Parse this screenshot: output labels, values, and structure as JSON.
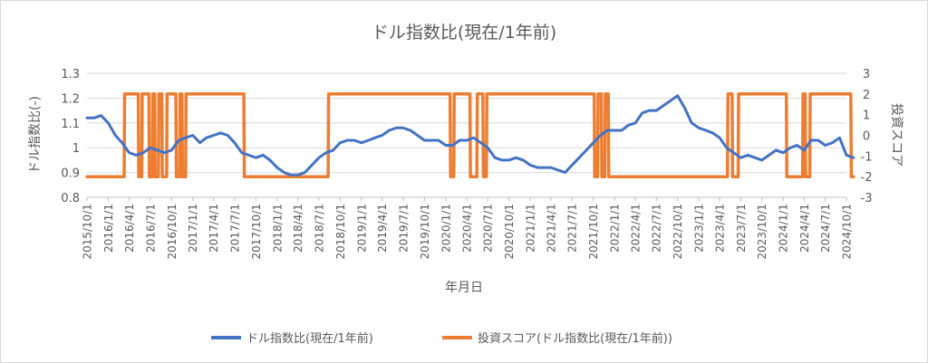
{
  "chart_data": {
    "type": "line",
    "title": "ドル指数比(現在/1年前)",
    "xlabel": "年月日",
    "ylabel": "ドル指数比(-)",
    "y2label": "投資スコア",
    "ylim": [
      0.8,
      1.3
    ],
    "y_ticks": [
      "1.3",
      "1.2",
      "1.1",
      "1",
      "0.9",
      "0.8"
    ],
    "y2lim": [
      -3,
      3
    ],
    "y2_ticks": [
      "3",
      "2",
      "1",
      "0",
      "-1",
      "-2",
      "-3"
    ],
    "grid": true,
    "legend": "bottom",
    "x_ticks": [
      "2015/10/1",
      "2016/1/1",
      "2016/4/1",
      "2016/7/1",
      "2016/10/1",
      "2017/1/1",
      "2017/4/1",
      "2017/7/1",
      "2017/10/1",
      "2018/1/1",
      "2018/4/1",
      "2018/7/1",
      "2018/10/1",
      "2019/1/1",
      "2019/4/1",
      "2019/7/1",
      "2019/10/1",
      "2020/1/1",
      "2020/4/1",
      "2020/7/1",
      "2020/10/1",
      "2021/1/1",
      "2021/4/1",
      "2021/7/1",
      "2021/10/1",
      "2022/1/1",
      "2022/4/1",
      "2022/7/1",
      "2022/10/1",
      "2023/1/1",
      "2023/4/1",
      "2023/7/1",
      "2023/10/1",
      "2024/1/1",
      "2024/4/1",
      "2024/7/1",
      "2024/10/1"
    ],
    "series": [
      {
        "name": "ドル指数比(現在/1年前)",
        "axis": "left",
        "color": "#4472C4",
        "x": [
          "2015/10/1",
          "2015/11/1",
          "2015/12/1",
          "2016/1/1",
          "2016/2/1",
          "2016/3/1",
          "2016/4/1",
          "2016/5/1",
          "2016/6/1",
          "2016/7/1",
          "2016/8/1",
          "2016/9/1",
          "2016/10/1",
          "2016/11/1",
          "2016/12/1",
          "2017/1/1",
          "2017/2/1",
          "2017/3/1",
          "2017/4/1",
          "2017/5/1",
          "2017/6/1",
          "2017/7/1",
          "2017/8/1",
          "2017/9/1",
          "2017/10/1",
          "2017/11/1",
          "2017/12/1",
          "2018/1/1",
          "2018/2/1",
          "2018/3/1",
          "2018/4/1",
          "2018/5/1",
          "2018/6/1",
          "2018/7/1",
          "2018/8/1",
          "2018/9/1",
          "2018/10/1",
          "2018/11/1",
          "2018/12/1",
          "2019/1/1",
          "2019/2/1",
          "2019/3/1",
          "2019/4/1",
          "2019/5/1",
          "2019/6/1",
          "2019/7/1",
          "2019/8/1",
          "2019/9/1",
          "2019/10/1",
          "2019/11/1",
          "2019/12/1",
          "2020/1/1",
          "2020/2/1",
          "2020/3/1",
          "2020/4/1",
          "2020/5/1",
          "2020/6/1",
          "2020/7/1",
          "2020/8/1",
          "2020/9/1",
          "2020/10/1",
          "2020/11/1",
          "2020/12/1",
          "2021/1/1",
          "2021/2/1",
          "2021/3/1",
          "2021/4/1",
          "2021/5/1",
          "2021/6/1",
          "2021/7/1",
          "2021/8/1",
          "2021/9/1",
          "2021/10/1",
          "2021/11/1",
          "2021/12/1",
          "2022/1/1",
          "2022/2/1",
          "2022/3/1",
          "2022/4/1",
          "2022/5/1",
          "2022/6/1",
          "2022/7/1",
          "2022/8/1",
          "2022/9/1",
          "2022/10/1",
          "2022/11/1",
          "2022/12/1",
          "2023/1/1",
          "2023/2/1",
          "2023/3/1",
          "2023/4/1",
          "2023/5/1",
          "2023/6/1",
          "2023/7/1",
          "2023/8/1",
          "2023/9/1",
          "2023/10/1",
          "2023/11/1",
          "2023/12/1",
          "2024/1/1",
          "2024/2/1",
          "2024/3/1",
          "2024/4/1",
          "2024/5/1",
          "2024/6/1",
          "2024/7/1",
          "2024/8/1",
          "2024/9/1",
          "2024/10/1",
          "2024/11/1"
        ],
        "values": [
          1.12,
          1.12,
          1.13,
          1.1,
          1.05,
          1.02,
          0.98,
          0.97,
          0.98,
          1.0,
          0.99,
          0.98,
          0.99,
          1.03,
          1.04,
          1.05,
          1.02,
          1.04,
          1.05,
          1.06,
          1.05,
          1.02,
          0.98,
          0.97,
          0.96,
          0.97,
          0.95,
          0.92,
          0.9,
          0.89,
          0.89,
          0.9,
          0.93,
          0.96,
          0.98,
          0.99,
          1.02,
          1.03,
          1.03,
          1.02,
          1.03,
          1.04,
          1.05,
          1.07,
          1.08,
          1.08,
          1.07,
          1.05,
          1.03,
          1.03,
          1.03,
          1.01,
          1.01,
          1.03,
          1.03,
          1.04,
          1.02,
          1.0,
          0.96,
          0.95,
          0.95,
          0.96,
          0.95,
          0.93,
          0.92,
          0.92,
          0.92,
          0.91,
          0.9,
          0.93,
          0.96,
          0.99,
          1.02,
          1.05,
          1.07,
          1.07,
          1.07,
          1.09,
          1.1,
          1.14,
          1.15,
          1.15,
          1.17,
          1.19,
          1.21,
          1.16,
          1.1,
          1.08,
          1.07,
          1.06,
          1.04,
          1.0,
          0.98,
          0.96,
          0.97,
          0.96,
          0.95,
          0.97,
          0.99,
          0.98,
          1.0,
          1.01,
          0.99,
          1.03,
          1.03,
          1.01,
          1.02,
          1.04,
          0.97,
          0.96
        ]
      },
      {
        "name": "投資スコア(ドル指数比(現在/1年前))",
        "axis": "right",
        "color": "#ED7D31",
        "x": [
          "2015/10/1",
          "2016/3/10",
          "2016/3/12",
          "2016/5/10",
          "2016/5/12",
          "2016/5/25",
          "2016/5/27",
          "2016/6/25",
          "2016/6/27",
          "2016/7/10",
          "2016/7/12",
          "2016/7/20",
          "2016/7/22",
          "2016/8/5",
          "2016/8/7",
          "2016/8/20",
          "2016/8/22",
          "2016/9/10",
          "2016/9/12",
          "2016/10/20",
          "2016/10/22",
          "2016/11/5",
          "2016/11/7",
          "2016/11/15",
          "2016/11/17",
          "2016/12/1",
          "2016/12/3",
          "2017/8/10",
          "2017/8/12",
          "2018/8/10",
          "2018/8/12",
          "2020/1/20",
          "2020/1/22",
          "2020/2/5",
          "2020/2/7",
          "2020/4/15",
          "2020/4/17",
          "2020/5/15",
          "2020/5/17",
          "2020/6/10",
          "2020/6/12",
          "2020/6/25",
          "2020/6/27",
          "2021/10/5",
          "2021/10/7",
          "2021/10/20",
          "2021/10/22",
          "2021/11/5",
          "2021/11/7",
          "2021/11/20",
          "2021/11/22",
          "2021/12/5",
          "2021/12/7",
          "2023/5/5",
          "2023/5/7",
          "2023/5/25",
          "2023/5/27",
          "2023/6/20",
          "2023/6/22",
          "2024/1/15",
          "2024/1/17",
          "2024/3/25",
          "2024/3/27",
          "2024/4/5",
          "2024/4/7",
          "2024/4/25",
          "2024/4/27",
          "2024/10/20",
          "2024/10/22",
          "2024/11/1"
        ],
        "values": [
          -2,
          -2,
          2,
          2,
          -2,
          -2,
          2,
          2,
          -2,
          -2,
          2,
          2,
          -2,
          -2,
          2,
          2,
          -2,
          -2,
          2,
          2,
          -2,
          -2,
          2,
          2,
          -2,
          -2,
          2,
          2,
          -2,
          -2,
          2,
          2,
          -2,
          -2,
          2,
          2,
          -2,
          -2,
          2,
          2,
          -2,
          -2,
          2,
          2,
          -2,
          -2,
          2,
          2,
          -2,
          -2,
          2,
          2,
          -2,
          -2,
          2,
          2,
          -2,
          -2,
          2,
          2,
          -2,
          -2,
          2,
          2,
          -2,
          -2,
          2,
          2,
          -2,
          -2
        ]
      }
    ]
  }
}
